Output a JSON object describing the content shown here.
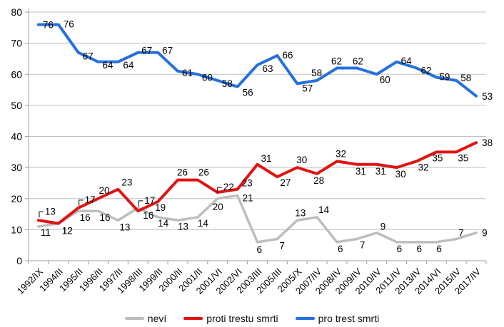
{
  "chart_data": {
    "type": "line",
    "title": "",
    "categories": [
      "1992/IX",
      "1994/II",
      "1995/II",
      "1996/II",
      "1997/II",
      "1998/III",
      "1999/II",
      "2000/II",
      "2001/II",
      "2001/VI",
      "2002/VI",
      "2003/III",
      "2005/III",
      "2005/X",
      "2007/IV",
      "2008/IV",
      "2009/IV",
      "2010/IV",
      "2011/IV",
      "2013/IV",
      "2014/VI",
      "2015/IV",
      "2017/IV"
    ],
    "series": [
      {
        "name": "neví",
        "color": "#bdbdbd",
        "values": [
          11,
          12,
          16,
          16,
          13,
          17,
          14,
          13,
          14,
          20,
          21,
          6,
          7,
          13,
          14,
          6,
          7,
          9,
          6,
          6,
          6,
          7,
          9
        ]
      },
      {
        "name": "proti trestu smrti",
        "color": "#e11212",
        "values": [
          13,
          12,
          17,
          20,
          23,
          16,
          19,
          26,
          26,
          22,
          23,
          31,
          27,
          30,
          28,
          32,
          31,
          31,
          30,
          32,
          35,
          35,
          38
        ]
      },
      {
        "name": "pro trest smrti",
        "color": "#2570dd",
        "values": [
          76,
          76,
          67,
          64,
          64,
          67,
          67,
          61,
          60,
          58,
          56,
          63,
          66,
          57,
          58,
          62,
          62,
          60,
          64,
          62,
          59,
          58,
          53
        ]
      }
    ],
    "ylim": [
      0,
      80
    ],
    "yticks": [
      "0",
      "10",
      "20",
      "30",
      "40",
      "50",
      "60",
      "70",
      "80"
    ],
    "grid": true,
    "data_labels": true,
    "legend_position": "bottom",
    "colors": {
      "gridline": "#c0c0c0",
      "axis": "#9f9f9f",
      "label_text": "#000000",
      "background": "#ffffff"
    }
  }
}
